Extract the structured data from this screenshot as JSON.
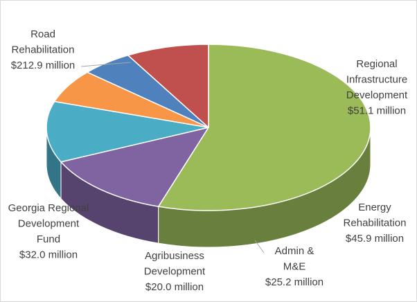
{
  "chart_data": {
    "type": "pie",
    "style": "3d",
    "unit": "$ million",
    "title": "",
    "series": [
      {
        "name": "Road Rehabilitation",
        "value": 212.9,
        "label_lines": [
          "Road",
          "Rehabilitation",
          "$212.9 million"
        ],
        "color": "#9bbb59"
      },
      {
        "name": "Regional Infrastructure Development",
        "value": 51.1,
        "label_lines": [
          "Regional",
          "Infrastructure",
          "Development",
          "$51.1 million"
        ],
        "color": "#8064a2"
      },
      {
        "name": "Energy Rehabilitation",
        "value": 45.9,
        "label_lines": [
          "Energy",
          "Rehabilitation",
          "$45.9 million"
        ],
        "color": "#4bacc6"
      },
      {
        "name": "Admin & M&E",
        "value": 25.2,
        "label_lines": [
          "Admin &",
          "M&E",
          "$25.2 million"
        ],
        "color": "#f79646"
      },
      {
        "name": "Agribusiness Development",
        "value": 20.0,
        "label_lines": [
          "Agribusiness",
          "Development",
          "$20.0 million"
        ],
        "color": "#4f81bd"
      },
      {
        "name": "Georgia Regional Development Fund",
        "value": 32.0,
        "label_lines": [
          "Georgia Regional",
          "Development",
          "Fund",
          "$32.0 million"
        ],
        "color": "#c0504d"
      }
    ]
  }
}
